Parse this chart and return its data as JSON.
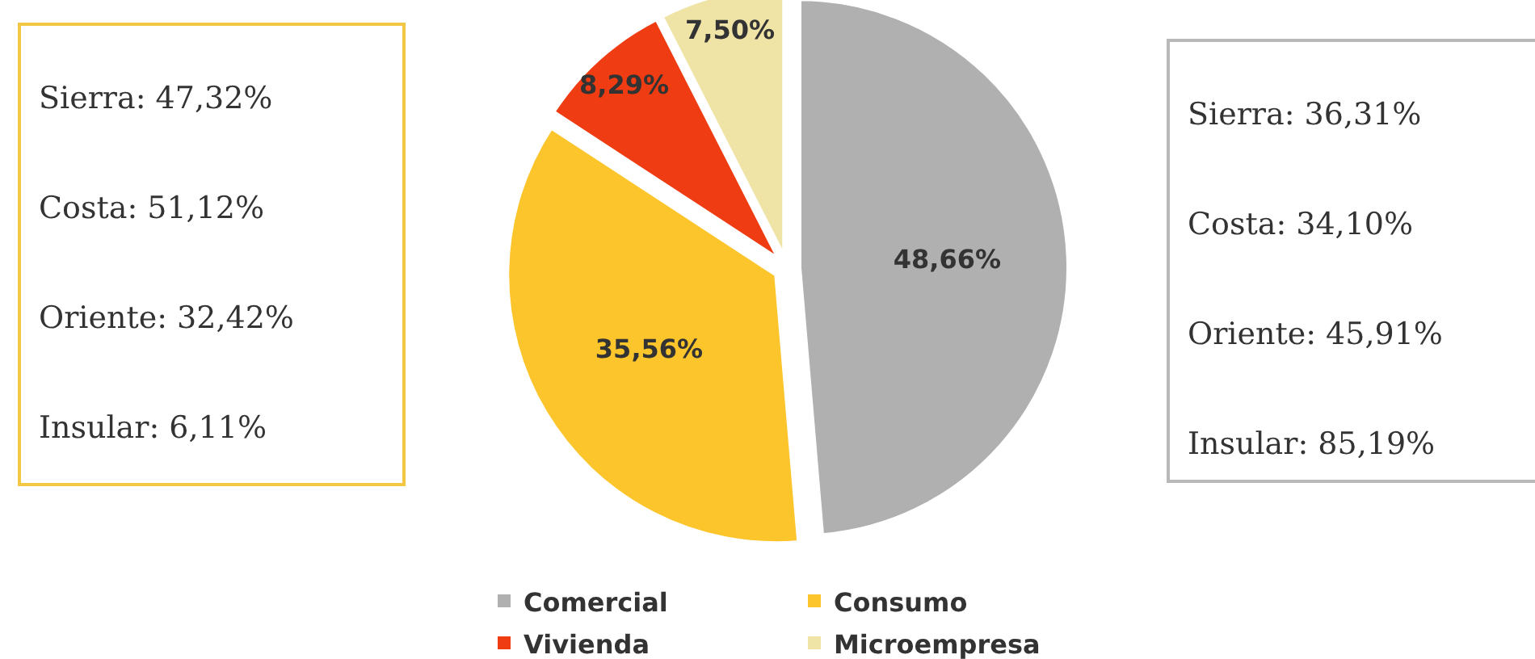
{
  "chart_data": [
    {
      "type": "other",
      "color": "#f2c744",
      "annotations": [
        "Sierra: 47,32%",
        "Costa: 51,12%",
        "Oriente: 32,42%",
        "Insular: 6,11%"
      ]
    },
    {
      "type": "pie",
      "categories": [
        "Comercial",
        "Consumo",
        "Vivienda",
        "Microempresa"
      ],
      "values": [
        48.66,
        35.56,
        8.29,
        7.5
      ],
      "colors": [
        "#b0b0b0",
        "#fbc52b",
        "#f03c12",
        "#efe3a6"
      ],
      "value_labels": [
        "48,66%",
        "35,56%",
        "8,29%",
        "7,50%"
      ],
      "legend": "bottom"
    },
    {
      "type": "other",
      "color": "#b8b8b8",
      "annotations": [
        "Sierra: 36,31%",
        "Costa: 34,10%",
        "Oriente: 45,91%",
        "Insular: 85,19%"
      ]
    }
  ]
}
